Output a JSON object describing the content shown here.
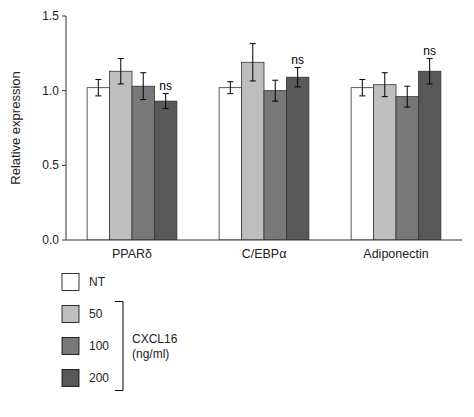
{
  "chart_data": {
    "type": "bar",
    "ylabel": "Relative expression",
    "categories": [
      "PPARδ",
      "C/EBPα",
      "Adiponectin"
    ],
    "series": [
      {
        "name": "NT",
        "color": "#ffffff",
        "values": [
          1.02,
          1.02,
          1.02
        ],
        "errors": [
          0.055,
          0.04,
          0.055
        ]
      },
      {
        "name": "50",
        "color": "#bebebe",
        "values": [
          1.13,
          1.19,
          1.04
        ],
        "errors": [
          0.085,
          0.125,
          0.08
        ]
      },
      {
        "name": "100",
        "color": "#787878",
        "values": [
          1.03,
          1.0,
          0.96
        ],
        "errors": [
          0.09,
          0.07,
          0.07
        ]
      },
      {
        "name": "200",
        "color": "#585858",
        "values": [
          0.93,
          1.09,
          1.13
        ],
        "errors": [
          0.05,
          0.065,
          0.085
        ]
      }
    ],
    "ylim": [
      0.0,
      1.5
    ],
    "yticks": [
      {
        "value": 0.0,
        "label": "0.0"
      },
      {
        "value": 0.5,
        "label": "0.5"
      },
      {
        "value": 1.0,
        "label": "1.0"
      },
      {
        "value": 1.5,
        "label": "1.5"
      }
    ],
    "annotations": [
      {
        "text": "ns",
        "series": 3,
        "category": 0
      },
      {
        "text": "ns",
        "series": 3,
        "category": 1
      },
      {
        "text": "ns",
        "series": 3,
        "category": 2
      }
    ],
    "legend": "bottom",
    "legend_title": [
      "CXCL16",
      "(ng/ml)"
    ],
    "grid": false
  }
}
